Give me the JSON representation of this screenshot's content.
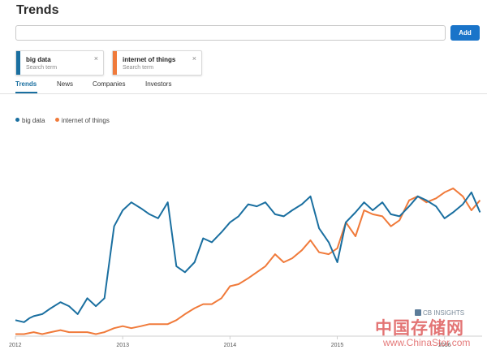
{
  "header": {
    "title": "Trends"
  },
  "search": {
    "value": "",
    "add_label": "Add"
  },
  "terms": [
    {
      "name": "big data",
      "subtitle": "Search term",
      "color": "#1a6fa0",
      "close": "×"
    },
    {
      "name": "internet of things",
      "subtitle": "Search term",
      "color": "#f07a3a",
      "close": "×"
    }
  ],
  "tabs": [
    {
      "label": "Trends",
      "active": true
    },
    {
      "label": "News",
      "active": false
    },
    {
      "label": "Companies",
      "active": false
    },
    {
      "label": "Investors",
      "active": false
    }
  ],
  "watermark": {
    "brand": "CB INSIGHTS",
    "cn": "中国存储网",
    "url": "www.ChinaStor.com"
  },
  "chart_data": {
    "type": "line",
    "title": "",
    "xlabel": "",
    "ylabel": "",
    "x_ticks": [
      "2012",
      "2013",
      "2014",
      "2015",
      "2016"
    ],
    "x_range": [
      2012.0,
      2016.35
    ],
    "y_range": [
      0,
      100
    ],
    "grid": false,
    "legend_position": "top-left",
    "series": [
      {
        "name": "big data",
        "color": "#1a6fa0",
        "x": [
          2012.0,
          2012.08,
          2012.13,
          2012.17,
          2012.25,
          2012.33,
          2012.42,
          2012.5,
          2012.58,
          2012.67,
          2012.75,
          2012.83,
          2012.92,
          2013.0,
          2013.08,
          2013.17,
          2013.25,
          2013.33,
          2013.42,
          2013.5,
          2013.58,
          2013.67,
          2013.75,
          2013.83,
          2013.92,
          2014.0,
          2014.08,
          2014.17,
          2014.25,
          2014.33,
          2014.42,
          2014.5,
          2014.58,
          2014.67,
          2014.75,
          2014.83,
          2014.92,
          2015.0,
          2015.08,
          2015.17,
          2015.25,
          2015.33,
          2015.42,
          2015.5,
          2015.58,
          2015.67,
          2015.75,
          2015.83,
          2015.92,
          2016.0,
          2016.08,
          2016.17,
          2016.25,
          2016.33
        ],
        "values": [
          8,
          7,
          9,
          10,
          11,
          14,
          17,
          15,
          11,
          19,
          15,
          19,
          55,
          63,
          67,
          64,
          61,
          59,
          67,
          35,
          32,
          37,
          49,
          47,
          52,
          57,
          60,
          66,
          65,
          67,
          61,
          60,
          63,
          66,
          70,
          54,
          47,
          37,
          57,
          62,
          67,
          63,
          67,
          61,
          60,
          65,
          70,
          68,
          65,
          59,
          62,
          66,
          72,
          62
        ]
      },
      {
        "name": "internet of things",
        "color": "#f07a3a",
        "x": [
          2012.0,
          2012.08,
          2012.17,
          2012.25,
          2012.33,
          2012.42,
          2012.5,
          2012.58,
          2012.67,
          2012.75,
          2012.83,
          2012.92,
          2013.0,
          2013.08,
          2013.17,
          2013.25,
          2013.33,
          2013.42,
          2013.5,
          2013.58,
          2013.67,
          2013.75,
          2013.83,
          2013.92,
          2014.0,
          2014.08,
          2014.17,
          2014.25,
          2014.33,
          2014.42,
          2014.5,
          2014.58,
          2014.67,
          2014.75,
          2014.83,
          2014.92,
          2015.0,
          2015.08,
          2015.17,
          2015.25,
          2015.33,
          2015.42,
          2015.5,
          2015.58,
          2015.67,
          2015.75,
          2015.83,
          2015.92,
          2016.0,
          2016.08,
          2016.17,
          2016.25,
          2016.33
        ],
        "values": [
          1,
          1,
          2,
          1,
          2,
          3,
          2,
          2,
          2,
          1,
          2,
          4,
          5,
          4,
          5,
          6,
          6,
          6,
          8,
          11,
          14,
          16,
          16,
          19,
          25,
          26,
          29,
          32,
          35,
          41,
          37,
          39,
          43,
          48,
          42,
          41,
          44,
          57,
          50,
          63,
          61,
          60,
          55,
          58,
          68,
          70,
          67,
          69,
          72,
          74,
          70,
          63,
          68
        ]
      }
    ]
  }
}
